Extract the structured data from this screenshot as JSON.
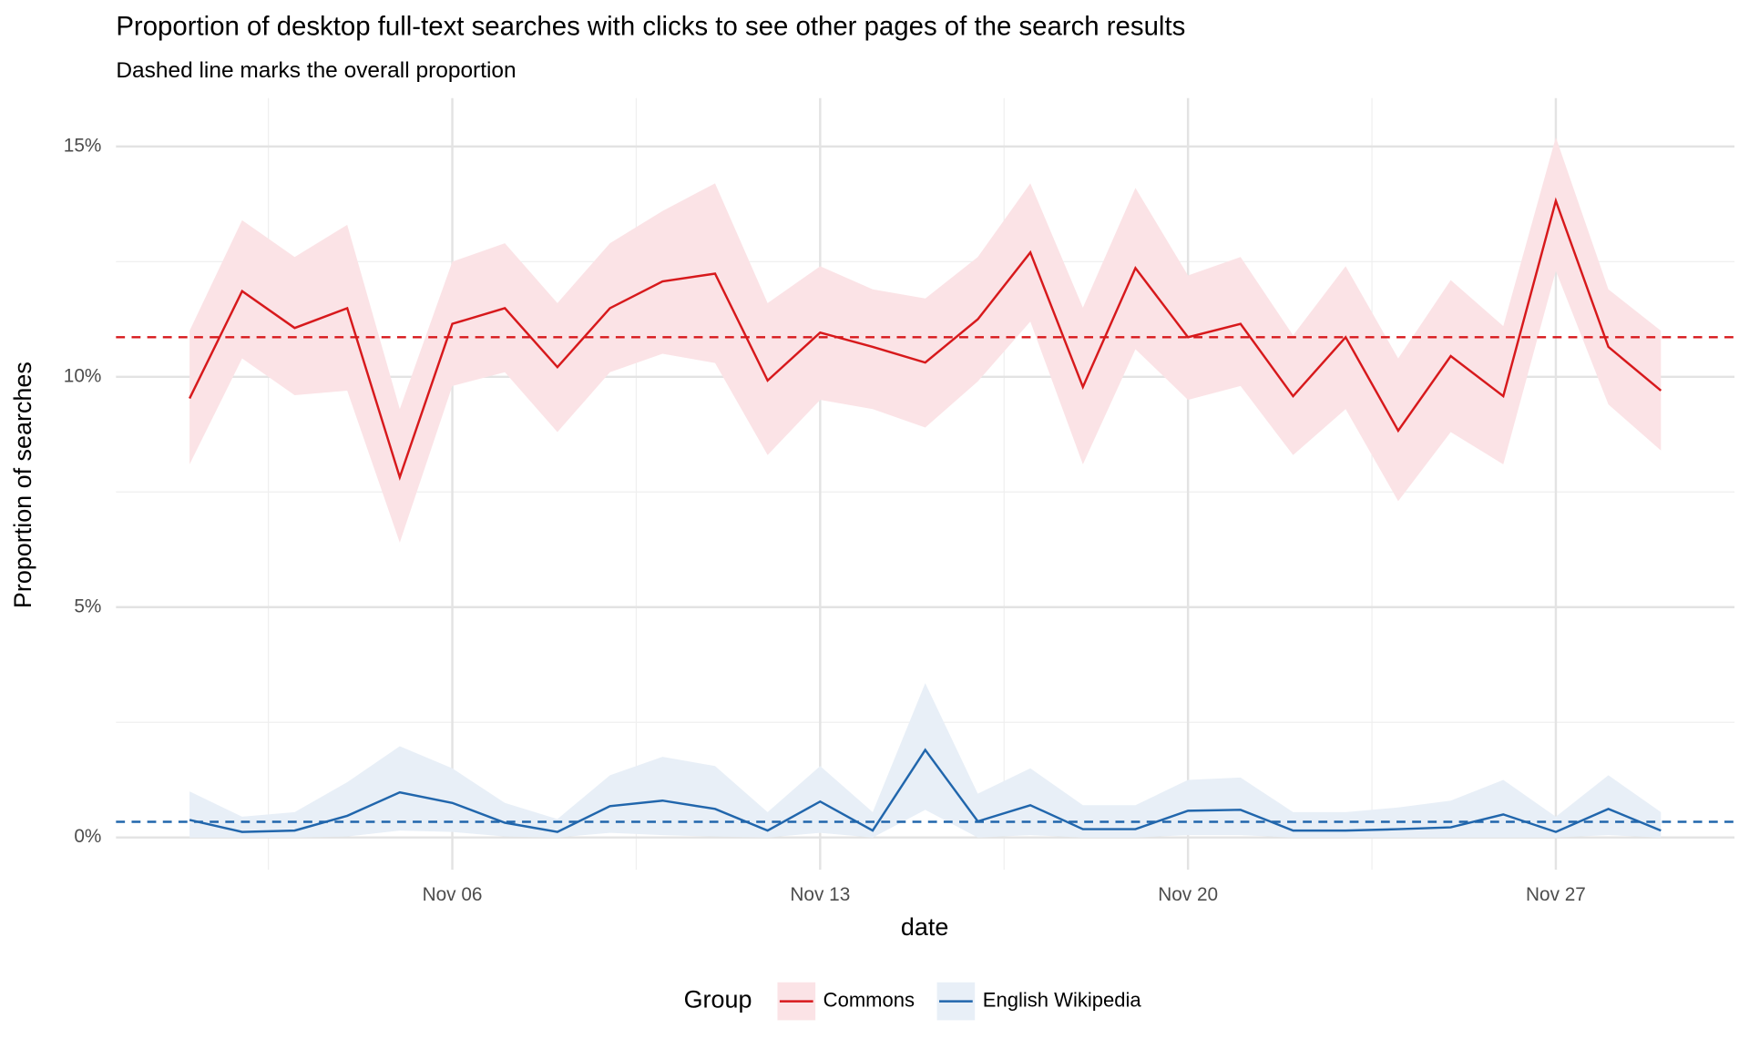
{
  "chart_data": {
    "type": "line",
    "title": "Proportion of desktop full-text searches with clicks to see other pages of the search results",
    "subtitle": "Dashed line marks the overall proportion",
    "xlabel": "date",
    "ylabel": "Proportion of searches",
    "legend_title": "Group",
    "legend": "bottom",
    "grid": true,
    "x": [
      1,
      2,
      3,
      4,
      5,
      6,
      7,
      8,
      9,
      10,
      11,
      12,
      13,
      14,
      15,
      16,
      17,
      18,
      19,
      20,
      21,
      22,
      23,
      24,
      25,
      26,
      27,
      28,
      29
    ],
    "xlim": [
      -0.4,
      30.4
    ],
    "xticks": [
      {
        "value": 6,
        "label": "Nov 06"
      },
      {
        "value": 13,
        "label": "Nov 13"
      },
      {
        "value": 20,
        "label": "Nov 20"
      },
      {
        "value": 27,
        "label": "Nov 27"
      }
    ],
    "xminor": [
      2.5,
      9.5,
      16.5,
      23.5
    ],
    "ylim": [
      -0.7,
      16.05
    ],
    "yticks": [
      {
        "value": 0,
        "label": "0%"
      },
      {
        "value": 5,
        "label": "5%"
      },
      {
        "value": 10,
        "label": "10%"
      },
      {
        "value": 15,
        "label": "15%"
      }
    ],
    "yminor": [
      2.5,
      7.5,
      12.5
    ],
    "series": [
      {
        "name": "Commons",
        "color": "#d7191c",
        "band_color": "#fbe3e6",
        "overall": 10.86,
        "values": [
          9.53,
          11.86,
          11.06,
          11.49,
          7.82,
          11.15,
          11.49,
          10.21,
          11.49,
          12.07,
          12.24,
          9.92,
          10.96,
          10.65,
          10.31,
          11.25,
          12.7,
          9.78,
          12.36,
          10.86,
          11.15,
          9.58,
          10.86,
          8.83,
          10.45,
          9.58,
          13.82,
          10.65,
          9.7
        ],
        "lower": [
          8.1,
          10.4,
          9.6,
          9.7,
          6.4,
          9.8,
          10.1,
          8.8,
          10.1,
          10.5,
          10.3,
          8.3,
          9.5,
          9.3,
          8.9,
          9.9,
          11.2,
          8.1,
          10.6,
          9.5,
          9.8,
          8.3,
          9.3,
          7.3,
          8.8,
          8.1,
          12.3,
          9.4,
          8.4
        ],
        "upper": [
          11.0,
          13.4,
          12.6,
          13.3,
          9.3,
          12.5,
          12.9,
          11.6,
          12.9,
          13.6,
          14.2,
          11.6,
          12.4,
          11.9,
          11.7,
          12.6,
          14.2,
          11.5,
          14.1,
          12.2,
          12.6,
          10.9,
          12.4,
          10.4,
          12.1,
          11.1,
          15.2,
          11.9,
          11.0
        ]
      },
      {
        "name": "English Wikipedia",
        "color": "#2166ac",
        "band_color": "#e8eff7",
        "overall": 0.34,
        "values": [
          0.38,
          0.12,
          0.15,
          0.47,
          0.98,
          0.75,
          0.32,
          0.12,
          0.68,
          0.8,
          0.62,
          0.15,
          0.78,
          0.15,
          1.9,
          0.35,
          0.7,
          0.18,
          0.18,
          0.58,
          0.6,
          0.15,
          0.15,
          0.18,
          0.22,
          0.5,
          0.12,
          0.62,
          0.15
        ],
        "lower": [
          0,
          0,
          0,
          0.02,
          0.15,
          0.12,
          0.02,
          0,
          0.1,
          0.05,
          0.02,
          0,
          0.1,
          0,
          0.6,
          0,
          0.05,
          0,
          0,
          0.05,
          0.05,
          0,
          0,
          0,
          0,
          0,
          0,
          0.05,
          0
        ],
        "upper": [
          1.0,
          0.45,
          0.55,
          1.2,
          1.98,
          1.5,
          0.75,
          0.4,
          1.35,
          1.75,
          1.55,
          0.55,
          1.55,
          0.55,
          3.35,
          0.95,
          1.5,
          0.7,
          0.7,
          1.25,
          1.3,
          0.55,
          0.55,
          0.65,
          0.8,
          1.25,
          0.45,
          1.35,
          0.55
        ]
      }
    ]
  }
}
